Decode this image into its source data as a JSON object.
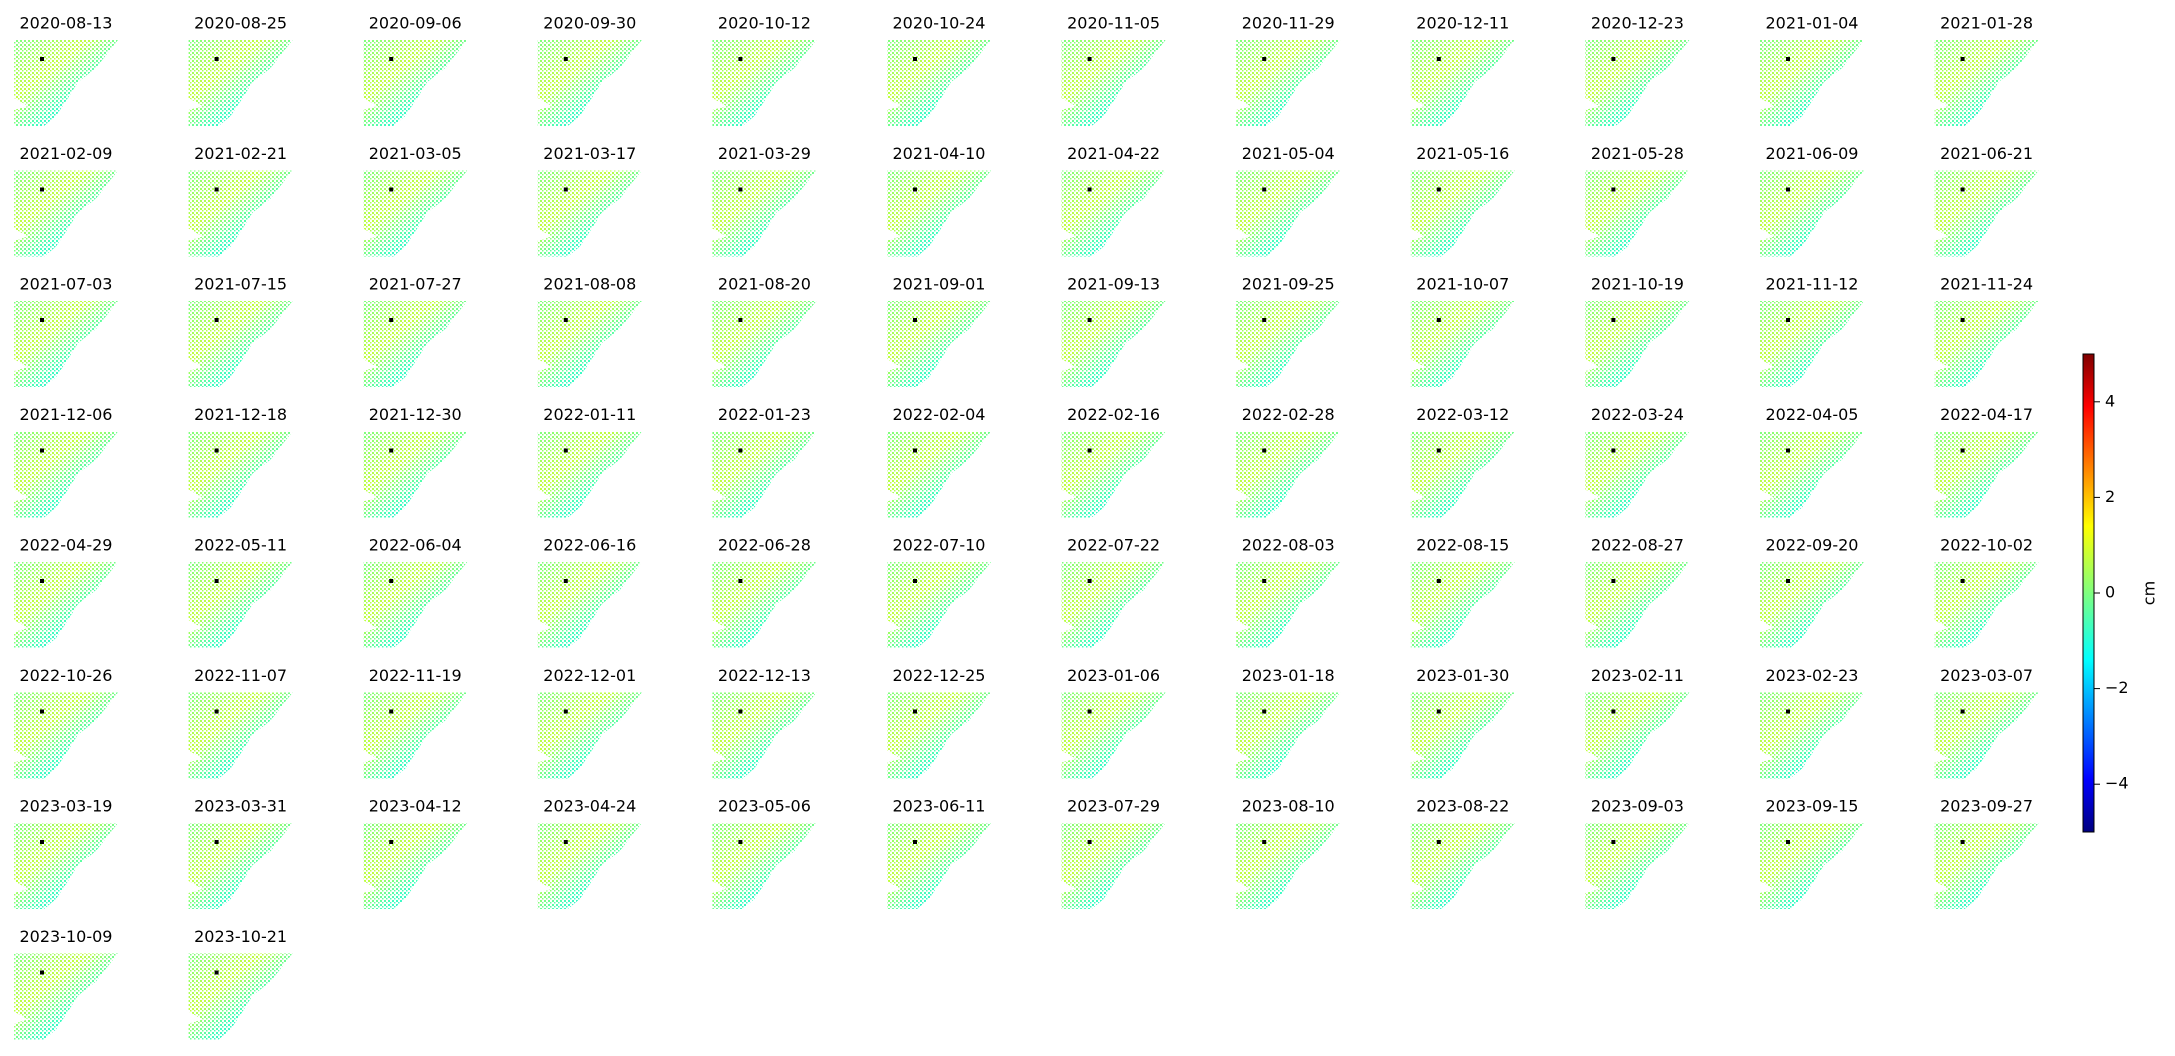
{
  "chart_data": {
    "type": "map-grid",
    "panels": [
      "2020-08-13",
      "2020-08-25",
      "2020-09-06",
      "2020-09-30",
      "2020-10-12",
      "2020-10-24",
      "2020-11-05",
      "2020-11-29",
      "2020-12-11",
      "2020-12-23",
      "2021-01-04",
      "2021-01-28",
      "2021-02-09",
      "2021-02-21",
      "2021-03-05",
      "2021-03-17",
      "2021-03-29",
      "2021-04-10",
      "2021-04-22",
      "2021-05-04",
      "2021-05-16",
      "2021-05-28",
      "2021-06-09",
      "2021-06-21",
      "2021-07-03",
      "2021-07-15",
      "2021-07-27",
      "2021-08-08",
      "2021-08-20",
      "2021-09-01",
      "2021-09-13",
      "2021-09-25",
      "2021-10-07",
      "2021-10-19",
      "2021-11-12",
      "2021-11-24",
      "2021-12-06",
      "2021-12-18",
      "2021-12-30",
      "2022-01-11",
      "2022-01-23",
      "2022-02-04",
      "2022-02-16",
      "2022-02-28",
      "2022-03-12",
      "2022-03-24",
      "2022-04-05",
      "2022-04-17",
      "2022-04-29",
      "2022-05-11",
      "2022-06-04",
      "2022-06-16",
      "2022-06-28",
      "2022-07-10",
      "2022-07-22",
      "2022-08-03",
      "2022-08-15",
      "2022-08-27",
      "2022-09-20",
      "2022-10-02",
      "2022-10-26",
      "2022-11-07",
      "2022-11-19",
      "2022-12-01",
      "2022-12-13",
      "2022-12-25",
      "2023-01-06",
      "2023-01-18",
      "2023-01-30",
      "2023-02-11",
      "2023-02-23",
      "2023-03-07",
      "2023-03-19",
      "2023-03-31",
      "2023-04-12",
      "2023-04-24",
      "2023-05-06",
      "2023-06-11",
      "2023-07-29",
      "2023-08-10",
      "2023-08-22",
      "2023-09-03",
      "2023-09-15",
      "2023-09-27",
      "2023-10-09",
      "2023-10-21"
    ],
    "colorbar": {
      "label": "cm",
      "colormap": "jet",
      "lim": [
        -5,
        5
      ],
      "ticks": [
        {
          "value": -4,
          "label": "−4"
        },
        {
          "value": -2,
          "label": "−2"
        },
        0,
        2,
        4
      ]
    }
  }
}
